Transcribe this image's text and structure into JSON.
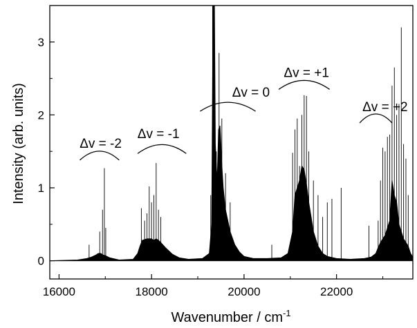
{
  "chart_data": {
    "type": "line",
    "title": "",
    "xlabel": "Wavenumber / cm",
    "xlabel_sup": "-1",
    "ylabel": "Intensity (arb. units)",
    "xlim": [
      15800,
      23650
    ],
    "ylim": [
      -0.25,
      3.5
    ],
    "xticks": [
      16000,
      18000,
      20000,
      22000
    ],
    "yticks": [
      0,
      1,
      2,
      3
    ],
    "grid": false,
    "legend": "none",
    "line_color": "#000000",
    "series": [
      {
        "name": "",
        "x": [
          15800,
          16400,
          16600,
          16700,
          16800,
          16850,
          16900,
          16950,
          17000,
          17100,
          17300,
          17600,
          17700,
          17750,
          17800,
          17900,
          18000,
          18050,
          18100,
          18150,
          18200,
          18300,
          18450,
          18600,
          18800,
          19100,
          19250,
          19300,
          19330,
          19360,
          19380,
          19400,
          19420,
          19450,
          19480,
          19500,
          19520,
          19550,
          19600,
          19700,
          19800,
          19900,
          20000,
          20200,
          20500,
          20800,
          20950,
          21050,
          21100,
          21150,
          21200,
          21250,
          21300,
          21350,
          21400,
          21450,
          21500,
          21600,
          21700,
          21800,
          22000,
          22300,
          22600,
          22750,
          22850,
          22900,
          22950,
          23000,
          23050,
          23100,
          23150,
          23200,
          23250,
          23300,
          23350,
          23400,
          23450,
          23500,
          23550,
          23600,
          23650
        ],
        "y": [
          0.0,
          0.01,
          0.03,
          0.05,
          0.08,
          0.1,
          0.1,
          0.08,
          0.07,
          0.04,
          0.01,
          0.02,
          0.1,
          0.2,
          0.28,
          0.3,
          0.3,
          0.28,
          0.3,
          0.28,
          0.25,
          0.18,
          0.09,
          0.04,
          0.02,
          0.03,
          0.1,
          0.5,
          3.5,
          3.5,
          1.6,
          1.3,
          1.1,
          1.8,
          1.85,
          1.6,
          1.3,
          1.0,
          0.7,
          0.4,
          0.22,
          0.12,
          0.06,
          0.03,
          0.03,
          0.04,
          0.1,
          0.4,
          0.9,
          1.0,
          1.1,
          1.3,
          1.25,
          1.05,
          0.8,
          0.6,
          0.4,
          0.2,
          0.1,
          0.06,
          0.03,
          0.02,
          0.03,
          0.05,
          0.1,
          0.18,
          0.25,
          0.3,
          0.35,
          0.45,
          0.55,
          1.1,
          0.9,
          0.8,
          0.5,
          0.4,
          0.3,
          0.25,
          0.2,
          0.1,
          0.05
        ]
      }
    ],
    "spikes": [
      [
        16650,
        0.22
      ],
      [
        16880,
        0.4
      ],
      [
        16940,
        0.7
      ],
      [
        16980,
        1.27
      ],
      [
        17010,
        0.45
      ],
      [
        17780,
        0.72
      ],
      [
        17850,
        0.55
      ],
      [
        17900,
        0.65
      ],
      [
        17950,
        1.02
      ],
      [
        18000,
        0.8
      ],
      [
        18050,
        0.9
      ],
      [
        18100,
        1.34
      ],
      [
        18150,
        0.7
      ],
      [
        18200,
        0.6
      ],
      [
        19280,
        0.9
      ],
      [
        19320,
        3.5
      ],
      [
        19350,
        3.5
      ],
      [
        19400,
        1.5
      ],
      [
        19460,
        2.85
      ],
      [
        19520,
        1.95
      ],
      [
        19600,
        1.2
      ],
      [
        19700,
        0.8
      ],
      [
        20600,
        0.22
      ],
      [
        21050,
        1.48
      ],
      [
        21100,
        1.8
      ],
      [
        21150,
        1.95
      ],
      [
        21200,
        1.3
      ],
      [
        21250,
        2.0
      ],
      [
        21300,
        2.27
      ],
      [
        21350,
        2.26
      ],
      [
        21400,
        1.5
      ],
      [
        21500,
        1.1
      ],
      [
        21600,
        0.9
      ],
      [
        21700,
        0.6
      ],
      [
        21800,
        0.8
      ],
      [
        21900,
        0.85
      ],
      [
        22100,
        1.0
      ],
      [
        22700,
        0.48
      ],
      [
        22900,
        0.55
      ],
      [
        22950,
        1.1
      ],
      [
        23000,
        1.55
      ],
      [
        23050,
        1.5
      ],
      [
        23100,
        1.7
      ],
      [
        23150,
        1.73
      ],
      [
        23200,
        2.4
      ],
      [
        23250,
        2.65
      ],
      [
        23300,
        2.0
      ],
      [
        23350,
        2.15
      ],
      [
        23400,
        3.2
      ],
      [
        23450,
        1.6
      ],
      [
        23500,
        1.4
      ],
      [
        23550,
        0.9
      ]
    ],
    "annotations": [
      {
        "text": "Δv = -2",
        "x": 16900,
        "y": 1.55,
        "arc": [
          16450,
          17300,
          1.38
        ]
      },
      {
        "text": "Δv = -1",
        "x": 18150,
        "y": 1.68,
        "arc": [
          17700,
          18750,
          1.47
        ]
      },
      {
        "text": "Δv = 0",
        "x": 20150,
        "y": 2.25,
        "arc": [
          19050,
          20250,
          2.05
        ]
      },
      {
        "text": "Δv = +1",
        "x": 21350,
        "y": 2.52,
        "arc": [
          20750,
          21850,
          2.35
        ]
      },
      {
        "text": "Δv = +2",
        "x": 23050,
        "y": 2.05,
        "arc": [
          22500,
          23200,
          1.89
        ]
      }
    ]
  }
}
